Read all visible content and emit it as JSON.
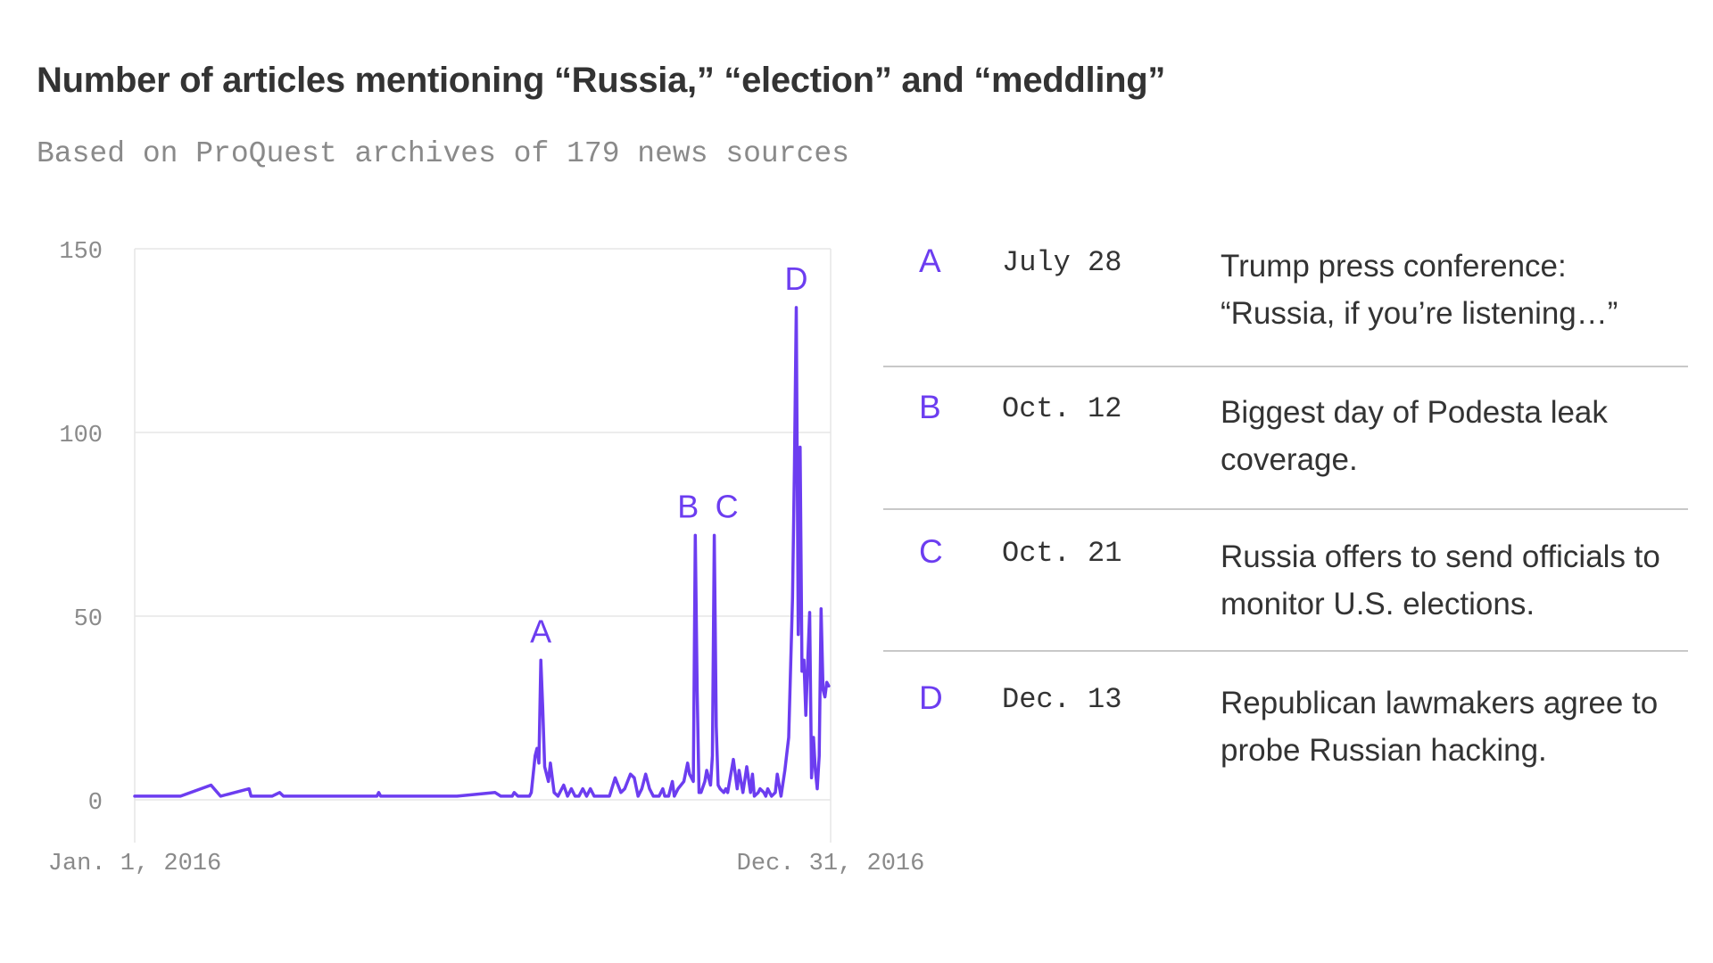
{
  "header": {
    "title": "Number of articles mentioning “Russia,” “election” and “meddling”",
    "subtitle": "Based on ProQuest archives of 179 news sources"
  },
  "colors": {
    "accent": "#6c3df0",
    "text": "#333333",
    "muted": "#8a8a8a",
    "grid": "#e6e6e6",
    "divider": "#c8c8c8"
  },
  "chart_data": {
    "type": "line",
    "title": "Number of articles mentioning “Russia,” “election” and “meddling”",
    "subtitle": "Based on ProQuest archives of 179 news sources",
    "xlabel": "",
    "ylabel": "",
    "x_range": [
      "2016-01-01",
      "2016-12-31"
    ],
    "x_tick_labels": [
      "Jan. 1, 2016",
      "Dec. 31, 2016"
    ],
    "ylim": [
      0,
      150
    ],
    "y_ticks": [
      0,
      50,
      100,
      150
    ],
    "grid": true,
    "series": [
      {
        "color": "#6c3df0",
        "points": [
          [
            "2016-01-01",
            1
          ],
          [
            "2016-01-25",
            1
          ],
          [
            "2016-02-10",
            4
          ],
          [
            "2016-02-15",
            1
          ],
          [
            "2016-03-01",
            3
          ],
          [
            "2016-03-02",
            1
          ],
          [
            "2016-03-13",
            1
          ],
          [
            "2016-03-17",
            2
          ],
          [
            "2016-03-19",
            1
          ],
          [
            "2016-05-07",
            1
          ],
          [
            "2016-05-08",
            2
          ],
          [
            "2016-05-09",
            1
          ],
          [
            "2016-06-18",
            1
          ],
          [
            "2016-07-08",
            2
          ],
          [
            "2016-07-11",
            1
          ],
          [
            "2016-07-17",
            1
          ],
          [
            "2016-07-18",
            2
          ],
          [
            "2016-07-20",
            1
          ],
          [
            "2016-07-26",
            1
          ],
          [
            "2016-07-27",
            2
          ],
          [
            "2016-07-29",
            12
          ],
          [
            "2016-07-30",
            14
          ],
          [
            "2016-07-31",
            10
          ],
          [
            "2016-08-01",
            38
          ],
          [
            "2016-08-02",
            25
          ],
          [
            "2016-08-03",
            9
          ],
          [
            "2016-08-04",
            7
          ],
          [
            "2016-08-05",
            5
          ],
          [
            "2016-08-06",
            10
          ],
          [
            "2016-08-08",
            2
          ],
          [
            "2016-08-10",
            1
          ],
          [
            "2016-08-13",
            4
          ],
          [
            "2016-08-15",
            1
          ],
          [
            "2016-08-17",
            3
          ],
          [
            "2016-08-19",
            1
          ],
          [
            "2016-08-21",
            1
          ],
          [
            "2016-08-23",
            3
          ],
          [
            "2016-08-25",
            1
          ],
          [
            "2016-08-27",
            3
          ],
          [
            "2016-08-29",
            1
          ],
          [
            "2016-09-01",
            1
          ],
          [
            "2016-09-06",
            1
          ],
          [
            "2016-09-09",
            6
          ],
          [
            "2016-09-12",
            2
          ],
          [
            "2016-09-14",
            3
          ],
          [
            "2016-09-17",
            7
          ],
          [
            "2016-09-19",
            6
          ],
          [
            "2016-09-21",
            1
          ],
          [
            "2016-09-23",
            3
          ],
          [
            "2016-09-25",
            7
          ],
          [
            "2016-09-27",
            3
          ],
          [
            "2016-09-29",
            1
          ],
          [
            "2016-10-02",
            1
          ],
          [
            "2016-10-04",
            3
          ],
          [
            "2016-10-05",
            1
          ],
          [
            "2016-10-07",
            1
          ],
          [
            "2016-10-09",
            5
          ],
          [
            "2016-10-10",
            1
          ],
          [
            "2016-10-12",
            3
          ],
          [
            "2016-10-15",
            5
          ],
          [
            "2016-10-17",
            10
          ],
          [
            "2016-10-18",
            7
          ],
          [
            "2016-10-20",
            5
          ],
          [
            "2016-10-21",
            72
          ],
          [
            "2016-10-22",
            30
          ],
          [
            "2016-10-23",
            2
          ],
          [
            "2016-10-24",
            2
          ],
          [
            "2016-10-26",
            5
          ],
          [
            "2016-10-27",
            8
          ],
          [
            "2016-10-29",
            4
          ],
          [
            "2016-10-30",
            12
          ],
          [
            "2016-10-31",
            72
          ],
          [
            "2016-11-01",
            20
          ],
          [
            "2016-11-02",
            4
          ],
          [
            "2016-11-03",
            3
          ],
          [
            "2016-11-05",
            2
          ],
          [
            "2016-11-06",
            3
          ],
          [
            "2016-11-07",
            2
          ],
          [
            "2016-11-08",
            5
          ],
          [
            "2016-11-10",
            11
          ],
          [
            "2016-11-12",
            3
          ],
          [
            "2016-11-13",
            8
          ],
          [
            "2016-11-15",
            2
          ],
          [
            "2016-11-17",
            9
          ],
          [
            "2016-11-19",
            2
          ],
          [
            "2016-11-20",
            7
          ],
          [
            "2016-11-21",
            1
          ],
          [
            "2016-11-23",
            2
          ],
          [
            "2016-11-24",
            3
          ],
          [
            "2016-11-26",
            2
          ],
          [
            "2016-11-27",
            1
          ],
          [
            "2016-11-28",
            3
          ],
          [
            "2016-11-30",
            1
          ],
          [
            "2016-12-02",
            2
          ],
          [
            "2016-12-03",
            7
          ],
          [
            "2016-12-05",
            1
          ],
          [
            "2016-12-07",
            8
          ],
          [
            "2016-12-09",
            17
          ],
          [
            "2016-12-11",
            55
          ],
          [
            "2016-12-12",
            90
          ],
          [
            "2016-12-13",
            134
          ],
          [
            "2016-12-14",
            45
          ],
          [
            "2016-12-15",
            96
          ],
          [
            "2016-12-16",
            35
          ],
          [
            "2016-12-17",
            38
          ],
          [
            "2016-12-18",
            23
          ],
          [
            "2016-12-19",
            38
          ],
          [
            "2016-12-20",
            51
          ],
          [
            "2016-12-21",
            6
          ],
          [
            "2016-12-22",
            17
          ],
          [
            "2016-12-23",
            8
          ],
          [
            "2016-12-24",
            3
          ],
          [
            "2016-12-25",
            12
          ],
          [
            "2016-12-26",
            52
          ],
          [
            "2016-12-27",
            30
          ],
          [
            "2016-12-28",
            28
          ],
          [
            "2016-12-29",
            32
          ],
          [
            "2016-12-30",
            31
          ]
        ]
      }
    ],
    "annotations": [
      {
        "label": "A",
        "x": "2016-08-01",
        "y": 38
      },
      {
        "label": "B",
        "x": "2016-10-21",
        "y": 72
      },
      {
        "label": "C",
        "x": "2016-10-31",
        "y": 72
      },
      {
        "label": "D",
        "x": "2016-12-13",
        "y": 134
      }
    ]
  },
  "events": [
    {
      "letter": "A",
      "date": "July 28",
      "desc": "Trump press conference: “Russia, if you’re listening…”"
    },
    {
      "letter": "B",
      "date": "Oct. 12",
      "desc": "Biggest day of Podesta leak coverage."
    },
    {
      "letter": "C",
      "date": "Oct. 21",
      "desc": "Russia offers to send officials to monitor U.S. elections."
    },
    {
      "letter": "D",
      "date": "Dec. 13",
      "desc": "Republican lawmakers agree to probe Russian hacking."
    }
  ]
}
